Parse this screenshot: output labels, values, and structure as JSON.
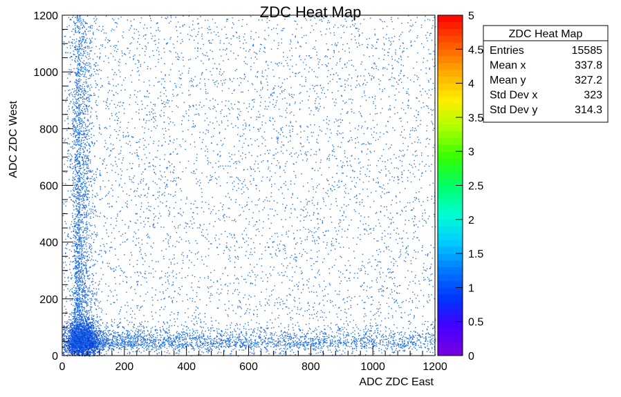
{
  "chart_data": {
    "type": "heatmap",
    "title": "ZDC Heat Map",
    "xlabel": "ADC ZDC East",
    "ylabel": "ADC ZDC West",
    "xlim": [
      0,
      1200
    ],
    "ylim": [
      0,
      1200
    ],
    "x_ticks": [
      "0",
      "200",
      "400",
      "600",
      "800",
      "1000",
      "1200"
    ],
    "y_ticks": [
      "0",
      "200",
      "400",
      "600",
      "800",
      "1000",
      "1200"
    ],
    "z_range": [
      0,
      5
    ],
    "z_ticks": [
      "0",
      "0.5",
      "1",
      "1.5",
      "2",
      "2.5",
      "3",
      "3.5",
      "4",
      "4.5",
      "5"
    ],
    "grid": false,
    "description_of_distribution": {
      "hot_spot": [
        60,
        50
      ],
      "band_along_x_near_y": 50,
      "band_along_y_near_x": 55
    }
  },
  "stats_box": {
    "title": "ZDC Heat Map",
    "rows": [
      {
        "label": "Entries",
        "value": "15585"
      },
      {
        "label": "Mean x",
        "value": "337.8"
      },
      {
        "label": "Mean y",
        "value": "327.2"
      },
      {
        "label": "Std Dev x",
        "value": "323"
      },
      {
        "label": "Std Dev y",
        "value": "314.3"
      }
    ]
  },
  "colors": {
    "point_color": "#1f6fe8",
    "point_color_dense": "#0a3fd6",
    "palette": [
      "#7a00e0",
      "#4400ff",
      "#0033ff",
      "#0077ff",
      "#00ccff",
      "#00ffd0",
      "#00ff66",
      "#33ff00",
      "#aaff00",
      "#ffee00",
      "#ffaa00",
      "#ff5500",
      "#ff0000"
    ]
  }
}
